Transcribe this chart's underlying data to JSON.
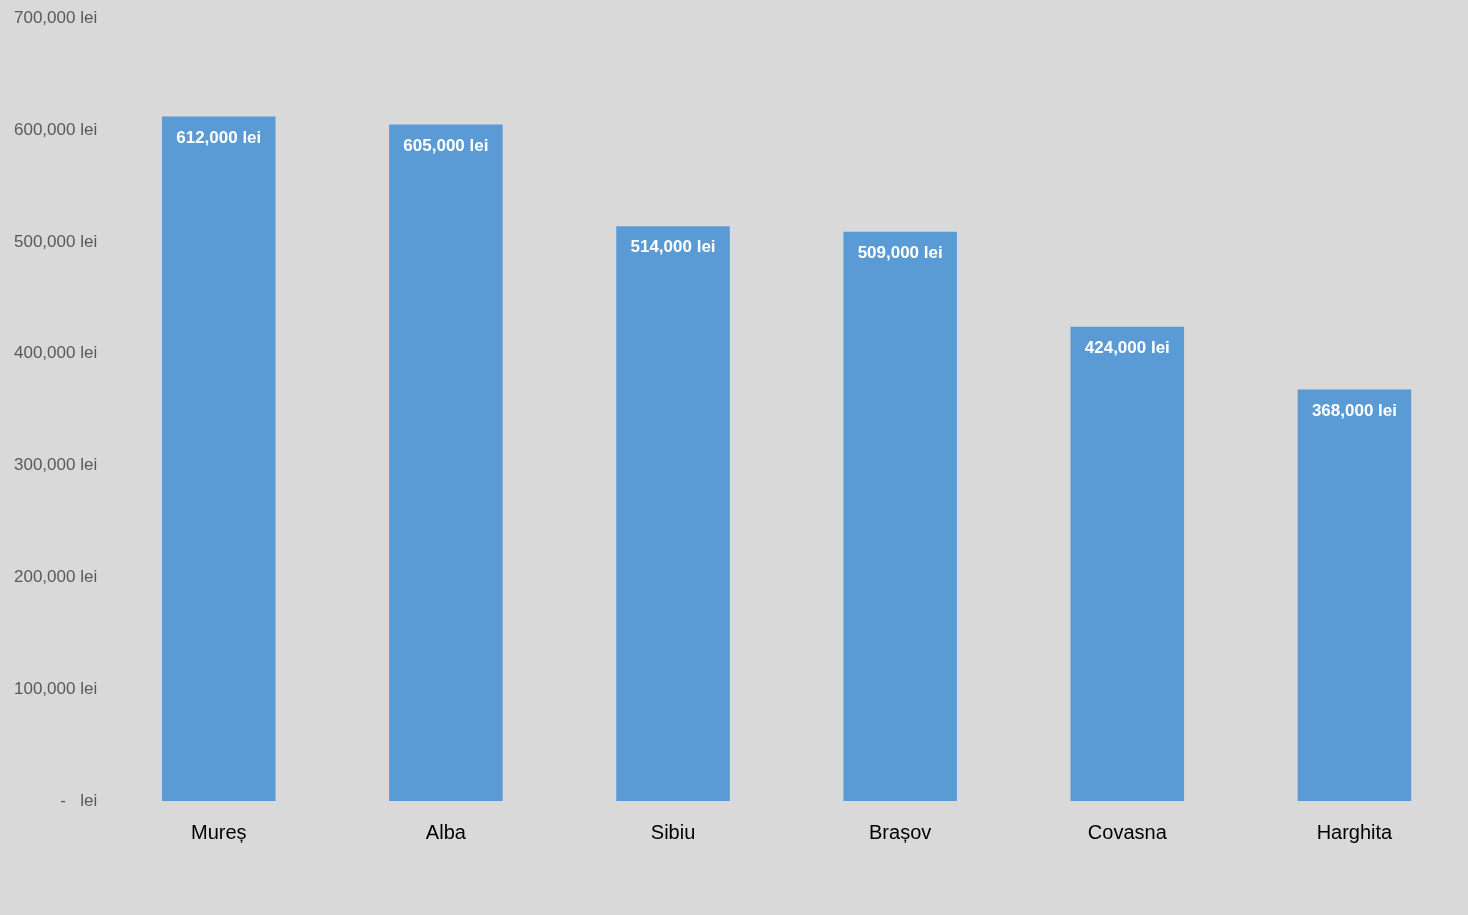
{
  "chart_data": {
    "type": "bar",
    "categories": [
      "Mureș",
      "Alba",
      "Sibiu",
      "Brașov",
      "Covasna",
      "Harghita"
    ],
    "values": [
      612000,
      605000,
      514000,
      509000,
      424000,
      368000
    ],
    "value_labels": [
      "612,000 lei",
      "605,000 lei",
      "514,000 lei",
      "509,000 lei",
      "424,000 lei",
      "368,000 lei"
    ],
    "color": "#5b9bd5",
    "ylim": [
      0,
      700000
    ],
    "yticks": [
      {
        "value": 0,
        "label": "-   lei"
      },
      {
        "value": 100000,
        "label": "100,000 lei"
      },
      {
        "value": 200000,
        "label": "200,000 lei"
      },
      {
        "value": 300000,
        "label": "300,000 lei"
      },
      {
        "value": 400000,
        "label": "400,000 lei"
      },
      {
        "value": 500000,
        "label": "500,000 lei"
      },
      {
        "value": 600000,
        "label": "600,000 lei"
      },
      {
        "value": 700000,
        "label": "700,000 lei"
      }
    ],
    "grid": false,
    "legend": false
  }
}
